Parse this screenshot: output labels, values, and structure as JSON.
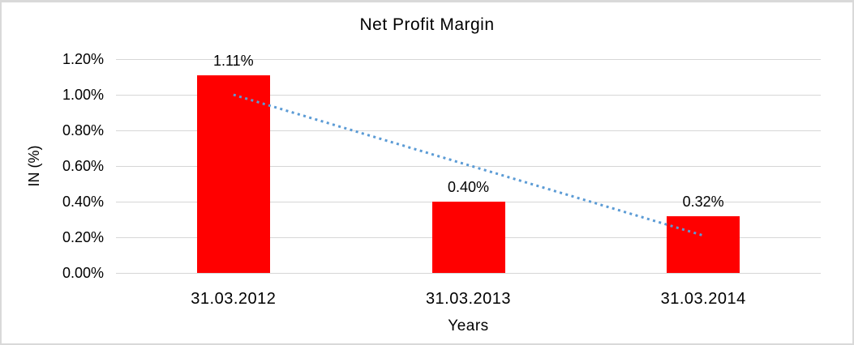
{
  "chart_data": {
    "type": "bar",
    "title": "Net Profit Margin",
    "xlabel": "Years",
    "ylabel": "IN (%)",
    "categories": [
      "31.03.2012",
      "31.03.2013",
      "31.03.2014"
    ],
    "values": [
      1.11,
      0.4,
      0.32
    ],
    "data_labels": [
      "1.11%",
      "0.40%",
      "0.32%"
    ],
    "ylim": [
      0,
      1.2
    ],
    "yticks": [
      {
        "value": 0.0,
        "label": "0.00%"
      },
      {
        "value": 0.2,
        "label": "0.20%"
      },
      {
        "value": 0.4,
        "label": "0.40%"
      },
      {
        "value": 0.6,
        "label": "0.60%"
      },
      {
        "value": 0.8,
        "label": "0.80%"
      },
      {
        "value": 1.0,
        "label": "1.00%"
      },
      {
        "value": 1.2,
        "label": "1.20%"
      }
    ],
    "grid": true,
    "legend": "none",
    "trendline": {
      "type": "linear",
      "style": "dotted",
      "start_value": 1.0,
      "end_value": 0.21
    }
  },
  "colors": {
    "bar": "#FF0000",
    "trendline": "#5B9BD5",
    "gridline": "#D6D6D6",
    "text": "#000000",
    "border": "#D9D9D9",
    "background": "#FFFFFF"
  }
}
